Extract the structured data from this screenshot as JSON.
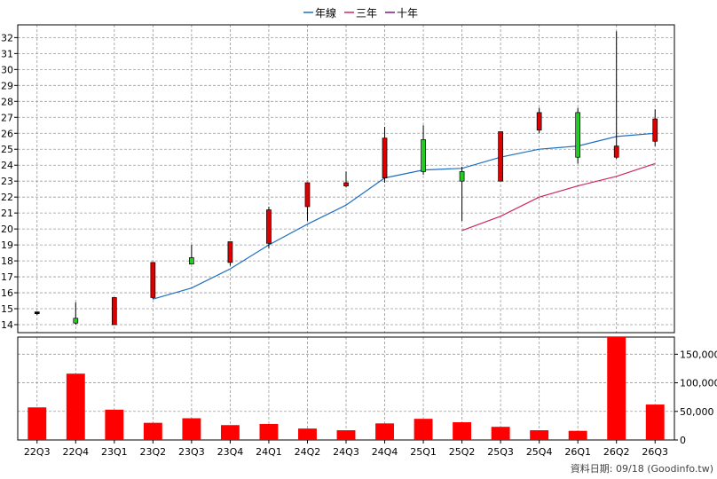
{
  "chart_data": [
    {
      "type": "candlestick",
      "legend_position": "top-center",
      "grid": true,
      "ylim": [
        13.5,
        32.8
      ],
      "y_ticks": [
        14,
        15,
        16,
        17,
        18,
        19,
        20,
        21,
        22,
        23,
        24,
        25,
        26,
        27,
        28,
        29,
        30,
        31,
        32
      ],
      "categories": [
        "22Q3",
        "22Q4",
        "23Q1",
        "23Q2",
        "23Q3",
        "23Q4",
        "24Q1",
        "24Q2",
        "24Q3",
        "24Q4",
        "25Q1",
        "25Q2",
        "25Q3",
        "25Q4",
        "26Q1",
        "26Q2",
        "26Q3"
      ],
      "candles": [
        {
          "open": 14.7,
          "close": 14.8,
          "high": 14.8,
          "low": 14.6,
          "color": "#000000"
        },
        {
          "open": 14.4,
          "close": 14.1,
          "high": 15.4,
          "low": 14.0,
          "color": "#22cc22"
        },
        {
          "open": 14.0,
          "close": 15.7,
          "high": 15.7,
          "low": 14.0,
          "color": "#dd0000"
        },
        {
          "open": 15.7,
          "close": 17.9,
          "high": 17.9,
          "low": 15.6,
          "color": "#dd0000"
        },
        {
          "open": 18.2,
          "close": 17.8,
          "high": 19.0,
          "low": 17.8,
          "color": "#22cc22"
        },
        {
          "open": 17.9,
          "close": 19.2,
          "high": 19.2,
          "low": 17.7,
          "color": "#dd0000"
        },
        {
          "open": 19.1,
          "close": 21.2,
          "high": 21.4,
          "low": 18.8,
          "color": "#dd0000"
        },
        {
          "open": 21.4,
          "close": 22.9,
          "high": 22.9,
          "low": 20.5,
          "color": "#dd0000"
        },
        {
          "open": 22.7,
          "close": 22.9,
          "high": 23.6,
          "low": 22.6,
          "color": "#dd0000"
        },
        {
          "open": 23.2,
          "close": 25.7,
          "high": 26.4,
          "low": 22.9,
          "color": "#dd0000"
        },
        {
          "open": 25.6,
          "close": 23.6,
          "high": 26.5,
          "low": 23.4,
          "color": "#22cc22"
        },
        {
          "open": 23.6,
          "close": 23.0,
          "high": 23.9,
          "low": 20.5,
          "color": "#22cc22"
        },
        {
          "open": 23.0,
          "close": 26.1,
          "high": 26.1,
          "low": 23.0,
          "color": "#dd0000"
        },
        {
          "open": 26.2,
          "close": 27.3,
          "high": 27.6,
          "low": 26.0,
          "color": "#dd0000"
        },
        {
          "open": 27.3,
          "close": 24.5,
          "high": 27.6,
          "low": 24.1,
          "color": "#22cc22"
        },
        {
          "open": 24.5,
          "close": 25.2,
          "high": 32.4,
          "low": 24.4,
          "color": "#dd0000"
        },
        {
          "open": 25.5,
          "close": 26.9,
          "high": 27.5,
          "low": 25.2,
          "color": "#dd0000"
        }
      ],
      "series": [
        {
          "name": "年線",
          "color": "#1f6fc0",
          "points": [
            [
              3,
              15.6
            ],
            [
              4,
              16.3
            ],
            [
              5,
              17.5
            ],
            [
              6,
              19.0
            ],
            [
              7,
              20.3
            ],
            [
              8,
              21.5
            ],
            [
              9,
              23.2
            ],
            [
              10,
              23.7
            ],
            [
              11,
              23.8
            ],
            [
              12,
              24.5
            ],
            [
              13,
              25.0
            ],
            [
              14,
              25.2
            ],
            [
              15,
              25.8
            ],
            [
              16,
              26.0
            ]
          ]
        },
        {
          "name": "三年",
          "color": "#cc2a5a",
          "points": [
            [
              11,
              19.9
            ],
            [
              12,
              20.8
            ],
            [
              13,
              22.0
            ],
            [
              14,
              22.7
            ],
            [
              15,
              23.3
            ],
            [
              16,
              24.1
            ]
          ]
        },
        {
          "name": "十年",
          "color": "#7a1a7a",
          "points": []
        }
      ]
    },
    {
      "type": "bar",
      "ylim": [
        0,
        180000
      ],
      "y_ticks": [
        0,
        50000,
        100000,
        150000
      ],
      "y_tick_labels": [
        "0",
        "50,000",
        "100,000",
        "150,000"
      ],
      "bar_color": "#ff0000",
      "categories": [
        "22Q3",
        "22Q4",
        "23Q1",
        "23Q2",
        "23Q3",
        "23Q4",
        "24Q1",
        "24Q2",
        "24Q3",
        "24Q4",
        "25Q1",
        "25Q2",
        "25Q3",
        "25Q4",
        "26Q1",
        "26Q2",
        "26Q3"
      ],
      "values": [
        57000,
        116000,
        53000,
        30000,
        38000,
        26000,
        28000,
        20000,
        17000,
        29000,
        37000,
        31000,
        23000,
        17000,
        16000,
        180000,
        62000
      ]
    }
  ],
  "footer": {
    "source": "資料日期: 09/18 (Goodinfo.tw)"
  }
}
